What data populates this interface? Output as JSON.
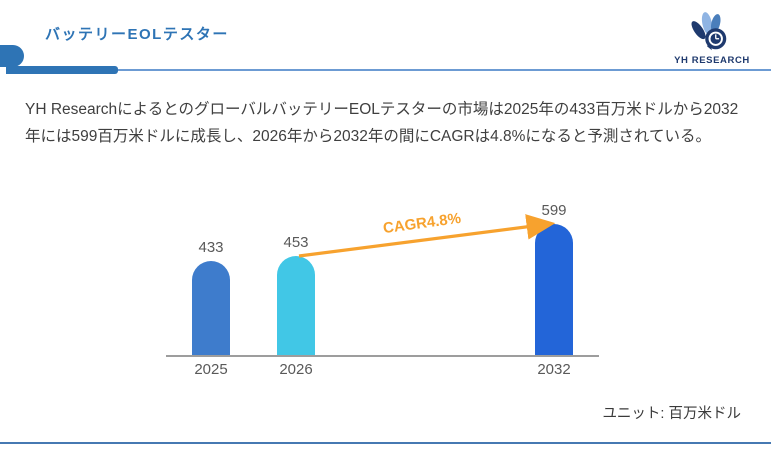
{
  "page": {
    "title": "バッテリーEOLテスター",
    "brand": "YH RESEARCH",
    "accent_color": "#2E74B5"
  },
  "summary": {
    "line1": "YH ResearchによるとのグローバルバッテリーEOLテスターの市場は2025年の433百万米ドルから2032",
    "line2": "年には599百万米ドルに成長し、2026年から2032年の間にCAGRは4.8%になると予測されている。"
  },
  "chart_data": {
    "type": "bar",
    "title": "",
    "xlabel": "",
    "ylabel": "",
    "categories": [
      "2025",
      "2026",
      "2032"
    ],
    "values": [
      433,
      453,
      599
    ],
    "bar_colors": [
      "#3E7CCC",
      "#41C7E6",
      "#2365D8"
    ],
    "ylim": [
      0,
      650
    ],
    "grid": false,
    "legend_position": "none",
    "axis_color": "#9D9D9D",
    "annotation": {
      "text": "CAGR4.8%",
      "color": "#F7A22E",
      "from_category": "2026",
      "to_category": "2032"
    },
    "unit_label": "ユニット: 百万米ドル"
  }
}
